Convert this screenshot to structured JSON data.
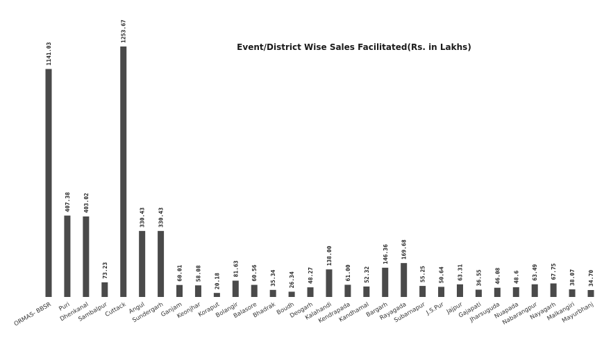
{
  "chart_data": {
    "type": "bar",
    "title": "Event/District Wise Sales Facilitated(Rs. in Lakhs)",
    "xlabel": "",
    "ylabel": "",
    "ylim": [
      0,
      1253.67
    ],
    "grid": false,
    "legend": "none",
    "bar_color": "#4a4a4a",
    "categories": [
      "ORMAS- BBSR",
      "Puri",
      "Dhenkanal",
      "Sambalpur",
      "Cuttack",
      "Angul",
      "Sundergarh",
      "Ganjam",
      "Keonjhar",
      "Koraput",
      "Bolangir",
      "Balasore",
      "Bhadrak",
      "Boudh",
      "Deogarh",
      "Kalahandi",
      "Kendrapada",
      "Kandhamal",
      "Bargarh",
      "Rayagada",
      "Subarnapur",
      "J.S.Pur",
      "Jajpur",
      "Gajapati",
      "Jharsuguda",
      "Nuapada",
      "Nabarangpur",
      "Nayagarh",
      "Malkangiri",
      "Mayurbhanj"
    ],
    "values": [
      1141.03,
      407.38,
      403.02,
      73.23,
      1253.67,
      330.43,
      330.43,
      60.01,
      58.08,
      20.18,
      81.63,
      60.56,
      35.34,
      26.34,
      48.27,
      138.0,
      61.0,
      52.32,
      146.36,
      169.68,
      55.25,
      50.64,
      63.31,
      36.55,
      46.08,
      48.6,
      63.49,
      67.75,
      38.07,
      34.7
    ],
    "value_labels": [
      "1141.03",
      "407.38",
      "403.02",
      "73.23",
      "1253.67",
      "330.43",
      "330.43",
      "60.01",
      "58.08",
      "20.18",
      "81.63",
      "60.56",
      "35.34",
      "26.34",
      "48.27",
      "138.00",
      "61.00",
      "52.32",
      "146.36",
      "169.68",
      "55.25",
      "50.64",
      "63.31",
      "36.55",
      "46.08",
      "48.6",
      "63.49",
      "67.75",
      "38.07",
      "34.70"
    ]
  }
}
